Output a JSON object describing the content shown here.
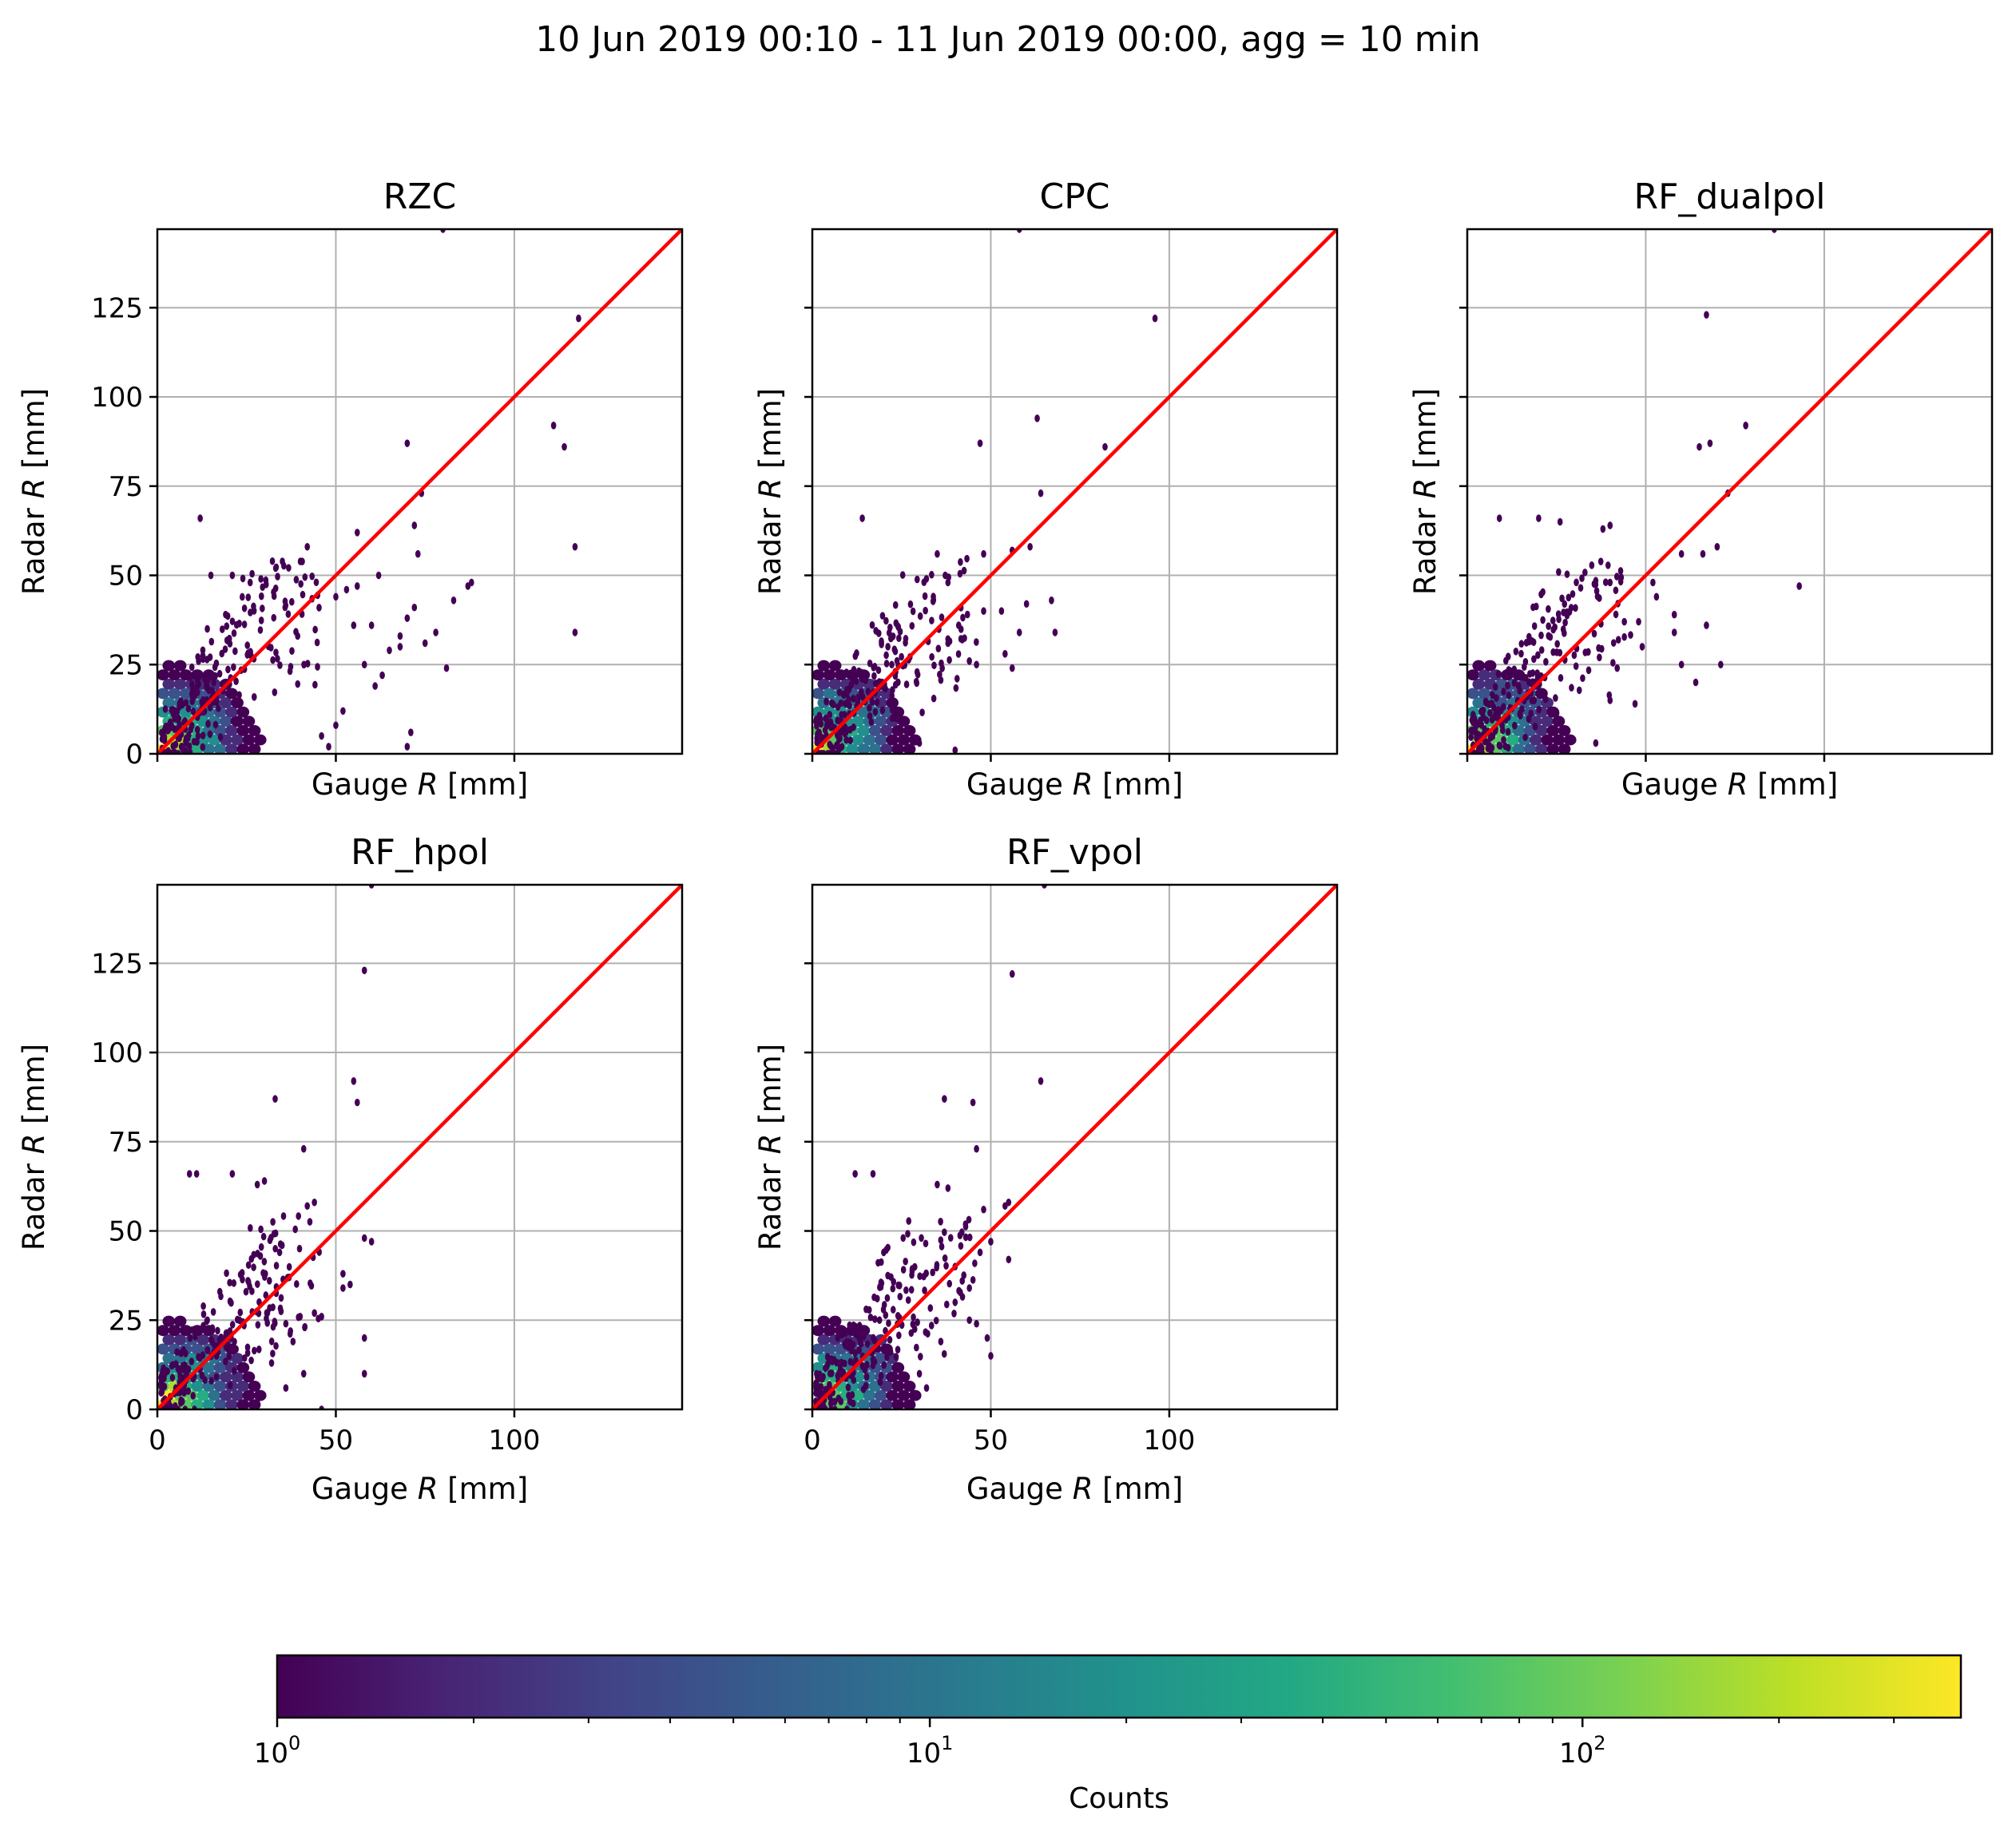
{
  "figure": {
    "title": "10 Jun 2019 00:10 - 11 Jun 2019 00:00, agg = 10 min"
  },
  "colors": {
    "identity_line": "#ff0000",
    "grid": "#b0b0b0",
    "colormap": "viridis"
  },
  "chart_data": [
    {
      "type": "hexbin",
      "title": "RZC",
      "xlabel": "Gauge R [mm]",
      "ylabel": "Radar R [mm]",
      "xlim": [
        0,
        147
      ],
      "ylim": [
        0,
        147
      ],
      "xticks": [
        0,
        50,
        100
      ],
      "yticks": [
        0,
        25,
        50,
        75,
        100,
        125
      ],
      "show_x_tick_labels": false,
      "show_y_tick_labels": true,
      "grid": true,
      "identity_line": true,
      "outliers": [
        [
          80,
          147
        ],
        [
          118,
          122
        ],
        [
          70,
          87
        ],
        [
          111,
          92
        ],
        [
          114,
          86
        ],
        [
          74,
          73
        ],
        [
          72,
          64
        ],
        [
          117,
          58
        ],
        [
          73,
          56
        ],
        [
          117,
          34
        ],
        [
          88,
          48
        ],
        [
          87,
          47
        ],
        [
          83,
          43
        ],
        [
          62,
          50
        ],
        [
          56,
          47
        ],
        [
          68,
          33
        ],
        [
          68,
          30
        ],
        [
          65,
          29
        ],
        [
          75,
          31
        ],
        [
          78,
          34
        ],
        [
          81,
          24
        ],
        [
          70,
          38
        ],
        [
          72,
          41
        ],
        [
          53,
          46
        ],
        [
          50,
          44
        ],
        [
          42,
          58
        ],
        [
          56,
          62
        ],
        [
          55,
          36
        ],
        [
          60,
          36
        ],
        [
          61,
          19
        ],
        [
          58,
          25
        ],
        [
          63,
          22
        ],
        [
          70,
          2
        ],
        [
          71,
          6
        ],
        [
          50,
          8
        ],
        [
          52,
          12
        ],
        [
          48,
          2
        ],
        [
          46,
          5
        ],
        [
          12,
          66
        ],
        [
          14,
          35
        ],
        [
          29,
          49
        ],
        [
          26,
          48
        ],
        [
          21,
          50
        ],
        [
          15,
          50
        ]
      ]
    },
    {
      "type": "hexbin",
      "title": "CPC",
      "xlabel": "Gauge R [mm]",
      "ylabel": "Radar R [mm]",
      "xlim": [
        0,
        147
      ],
      "ylim": [
        0,
        147
      ],
      "xticks": [
        0,
        50,
        100
      ],
      "yticks": [
        0,
        25,
        50,
        75,
        100,
        125
      ],
      "show_x_tick_labels": false,
      "show_y_tick_labels": false,
      "grid": true,
      "identity_line": true,
      "outliers": [
        [
          58,
          147
        ],
        [
          96,
          122
        ],
        [
          63,
          94
        ],
        [
          47,
          87
        ],
        [
          82,
          86
        ],
        [
          64,
          73
        ],
        [
          14,
          66
        ],
        [
          35,
          56
        ],
        [
          48,
          56
        ],
        [
          56,
          57
        ],
        [
          61,
          58
        ],
        [
          67,
          43
        ],
        [
          60,
          42
        ],
        [
          48,
          40
        ],
        [
          58,
          34
        ],
        [
          68,
          34
        ],
        [
          53,
          40
        ],
        [
          56,
          24
        ],
        [
          54,
          28
        ],
        [
          38,
          48
        ],
        [
          41,
          36
        ],
        [
          38,
          31
        ],
        [
          30,
          3
        ],
        [
          40,
          1
        ],
        [
          44,
          26
        ],
        [
          42,
          32
        ],
        [
          46,
          25
        ]
      ]
    },
    {
      "type": "hexbin",
      "title": "RF_dualpol",
      "xlabel": "Gauge R [mm]",
      "ylabel": "Radar R [mm]",
      "xlim": [
        0,
        147
      ],
      "ylim": [
        0,
        147
      ],
      "xticks": [
        0,
        50,
        100
      ],
      "yticks": [
        0,
        25,
        50,
        75,
        100,
        125
      ],
      "show_x_tick_labels": false,
      "show_y_tick_labels": false,
      "grid": true,
      "identity_line": true,
      "outliers": [
        [
          86,
          147
        ],
        [
          67,
          123
        ],
        [
          78,
          92
        ],
        [
          68,
          87
        ],
        [
          65,
          86
        ],
        [
          73,
          73
        ],
        [
          9,
          66
        ],
        [
          20,
          66
        ],
        [
          26,
          65
        ],
        [
          38,
          63
        ],
        [
          40,
          64
        ],
        [
          70,
          58
        ],
        [
          60,
          56
        ],
        [
          66,
          56
        ],
        [
          93,
          47
        ],
        [
          40,
          48
        ],
        [
          52,
          48
        ],
        [
          53,
          44
        ],
        [
          48,
          37
        ],
        [
          49,
          30
        ],
        [
          58,
          34
        ],
        [
          67,
          36
        ],
        [
          60,
          25
        ],
        [
          64,
          20
        ],
        [
          71,
          25
        ],
        [
          58,
          39
        ],
        [
          44,
          37
        ],
        [
          37,
          27
        ],
        [
          40,
          15
        ],
        [
          47,
          14
        ],
        [
          36,
          3
        ],
        [
          23,
          12
        ],
        [
          42,
          24
        ]
      ]
    },
    {
      "type": "hexbin",
      "title": "RF_hpol",
      "xlabel": "Gauge R [mm]",
      "ylabel": "Radar R [mm]",
      "xlim": [
        0,
        147
      ],
      "ylim": [
        0,
        147
      ],
      "xticks": [
        0,
        50,
        100
      ],
      "yticks": [
        0,
        25,
        50,
        75,
        100,
        125
      ],
      "show_x_tick_labels": true,
      "show_y_tick_labels": true,
      "grid": true,
      "identity_line": true,
      "outliers": [
        [
          60,
          147
        ],
        [
          58,
          123
        ],
        [
          55,
          92
        ],
        [
          56,
          86
        ],
        [
          33,
          87
        ],
        [
          41,
          73
        ],
        [
          9,
          66
        ],
        [
          11,
          66
        ],
        [
          21,
          66
        ],
        [
          28,
          63
        ],
        [
          30,
          64
        ],
        [
          42,
          57
        ],
        [
          44,
          58
        ],
        [
          52,
          38
        ],
        [
          58,
          48
        ],
        [
          60,
          47
        ],
        [
          58,
          20
        ],
        [
          58,
          10
        ],
        [
          54,
          35
        ],
        [
          52,
          34
        ],
        [
          40,
          26
        ],
        [
          44,
          27
        ],
        [
          46,
          26
        ],
        [
          36,
          24
        ],
        [
          38,
          19
        ],
        [
          32,
          13
        ],
        [
          36,
          6
        ],
        [
          28,
          2
        ],
        [
          41,
          10
        ],
        [
          46,
          0
        ]
      ]
    },
    {
      "type": "hexbin",
      "title": "RF_vpol",
      "xlabel": "Gauge R [mm]",
      "ylabel": "Radar R [mm]",
      "xlim": [
        0,
        147
      ],
      "ylim": [
        0,
        147
      ],
      "xticks": [
        0,
        50,
        100
      ],
      "yticks": [
        0,
        25,
        50,
        75,
        100,
        125
      ],
      "show_x_tick_labels": true,
      "show_y_tick_labels": false,
      "grid": true,
      "identity_line": true,
      "outliers": [
        [
          65,
          147
        ],
        [
          56,
          122
        ],
        [
          64,
          92
        ],
        [
          37,
          87
        ],
        [
          45,
          86
        ],
        [
          46,
          73
        ],
        [
          12,
          66
        ],
        [
          17,
          66
        ],
        [
          35,
          63
        ],
        [
          38,
          62
        ],
        [
          48,
          56
        ],
        [
          55,
          58
        ],
        [
          54,
          57
        ],
        [
          50,
          47
        ],
        [
          55,
          42
        ],
        [
          47,
          44
        ],
        [
          40,
          40
        ],
        [
          44,
          34
        ],
        [
          44,
          25
        ],
        [
          46,
          24
        ],
        [
          49,
          20
        ],
        [
          50,
          15
        ],
        [
          40,
          30
        ],
        [
          42,
          36
        ],
        [
          36,
          19
        ],
        [
          30,
          10
        ],
        [
          32,
          6
        ],
        [
          20,
          44
        ]
      ]
    }
  ],
  "colorbar": {
    "label": "Counts",
    "scale": "log",
    "range": [
      1,
      380
    ],
    "major_ticks": [
      {
        "value": 1,
        "base": "10",
        "exp": "0"
      },
      {
        "value": 10,
        "base": "10",
        "exp": "1"
      },
      {
        "value": 100,
        "base": "10",
        "exp": "2"
      }
    ],
    "colormap": "viridis"
  }
}
